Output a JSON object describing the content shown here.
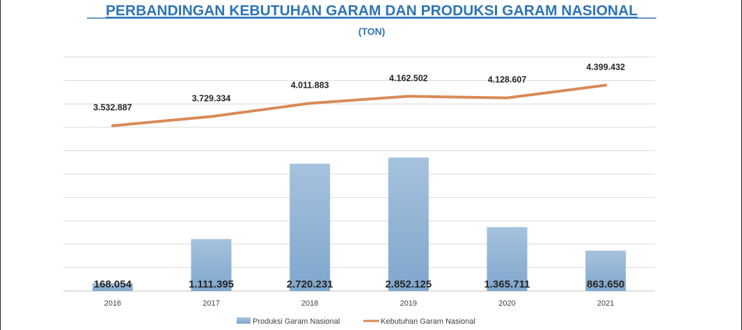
{
  "chart_data": {
    "type": "bar",
    "title": "PERBANDINGAN KEBUTUHAN GARAM DAN PRODUKSI GARAM NASIONAL",
    "subtitle": "(TON)",
    "categories": [
      "2016",
      "2017",
      "2018",
      "2019",
      "2020",
      "2021"
    ],
    "series": [
      {
        "name": "Produksi Garam Nasional",
        "kind": "bar",
        "values": [
          168054,
          1111395,
          2720231,
          2852125,
          1365711,
          863650
        ],
        "labels": [
          "168.054",
          "1.111.395",
          "2.720.231",
          "2.852.125",
          "1.365.711",
          "863.650"
        ]
      },
      {
        "name": "Kebutuhan Garam Nasional",
        "kind": "line",
        "values": [
          3532887,
          3729334,
          4011883,
          4162502,
          4128607,
          4399432
        ],
        "labels": [
          "3.532.887",
          "3.729.334",
          "4.011.883",
          "4.162.502",
          "4.128.607",
          "4.399.432"
        ]
      }
    ],
    "ylim": [
      0,
      5000000
    ],
    "grid": true,
    "legend_position": "bottom",
    "colors": {
      "title": "#2e75b6",
      "bar_top": "#a6c2de",
      "bar_bottom": "#7fa6cc",
      "line": "#d88a58",
      "grid": "#d9d9d9",
      "text": "#262626"
    }
  }
}
